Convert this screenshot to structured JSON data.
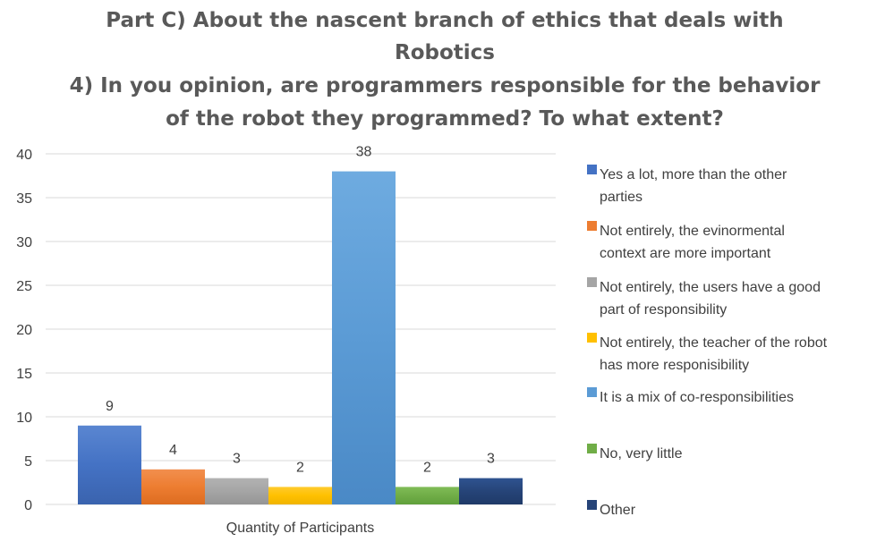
{
  "chart_data": {
    "type": "bar",
    "title": [
      "Part C) About the nascent branch of ethics that deals with",
      "Robotics",
      "4) In you opinion, are programmers responsible for the behavior",
      "of the robot they programmed? To what extent?"
    ],
    "categories": [
      "Quantity of Participants"
    ],
    "xlabel": "",
    "ylabel": "",
    "ylim": [
      0,
      40
    ],
    "yticks": [
      0,
      5,
      10,
      15,
      20,
      25,
      30,
      35,
      40
    ],
    "grid": true,
    "legend_position": "right",
    "series": [
      {
        "name": "Yes a lot, more than the other parties",
        "legend_lines": [
          "Yes a lot, more than the other",
          "parties"
        ],
        "values": [
          9
        ],
        "color": "#4472C4",
        "color_light": "#5A86D1",
        "color_dark": "#3A63AE"
      },
      {
        "name": "Not entirely, the evinormental context are more important",
        "legend_lines": [
          "Not entirely, the evinormental",
          "context are more important"
        ],
        "values": [
          4
        ],
        "color": "#ED7D31",
        "color_light": "#F28F4E",
        "color_dark": "#DD6C20"
      },
      {
        "name": "Not entirely, the users have a good part of responsibility",
        "legend_lines": [
          "Not entirely, the users have a good",
          "part of responsibility"
        ],
        "values": [
          3
        ],
        "color": "#A5A5A5",
        "color_light": "#B2B2B2",
        "color_dark": "#959595"
      },
      {
        "name": "Not entirely, the teacher of the robot has more responisibility",
        "legend_lines": [
          "Not entirely, the teacher of the robot",
          "has more responisibility"
        ],
        "values": [
          2
        ],
        "color": "#FFC000",
        "color_light": "#FFCB2E",
        "color_dark": "#F0B400"
      },
      {
        "name": "It is a mix of co-responsibilities",
        "legend_lines": [
          "It is a mix of co-responsibilities"
        ],
        "values": [
          38
        ],
        "color": "#5B9BD5",
        "color_light": "#6EABE0",
        "color_dark": "#4A89C6"
      },
      {
        "name": "No, very little",
        "legend_lines": [
          "No, very little"
        ],
        "values": [
          2
        ],
        "color": "#70AD47",
        "color_light": "#80BC57",
        "color_dark": "#60A03B"
      },
      {
        "name": "Other",
        "legend_lines": [
          "Other"
        ],
        "values": [
          3
        ],
        "color": "#264478",
        "color_light": "#2F5390",
        "color_dark": "#1F3A68"
      }
    ]
  }
}
